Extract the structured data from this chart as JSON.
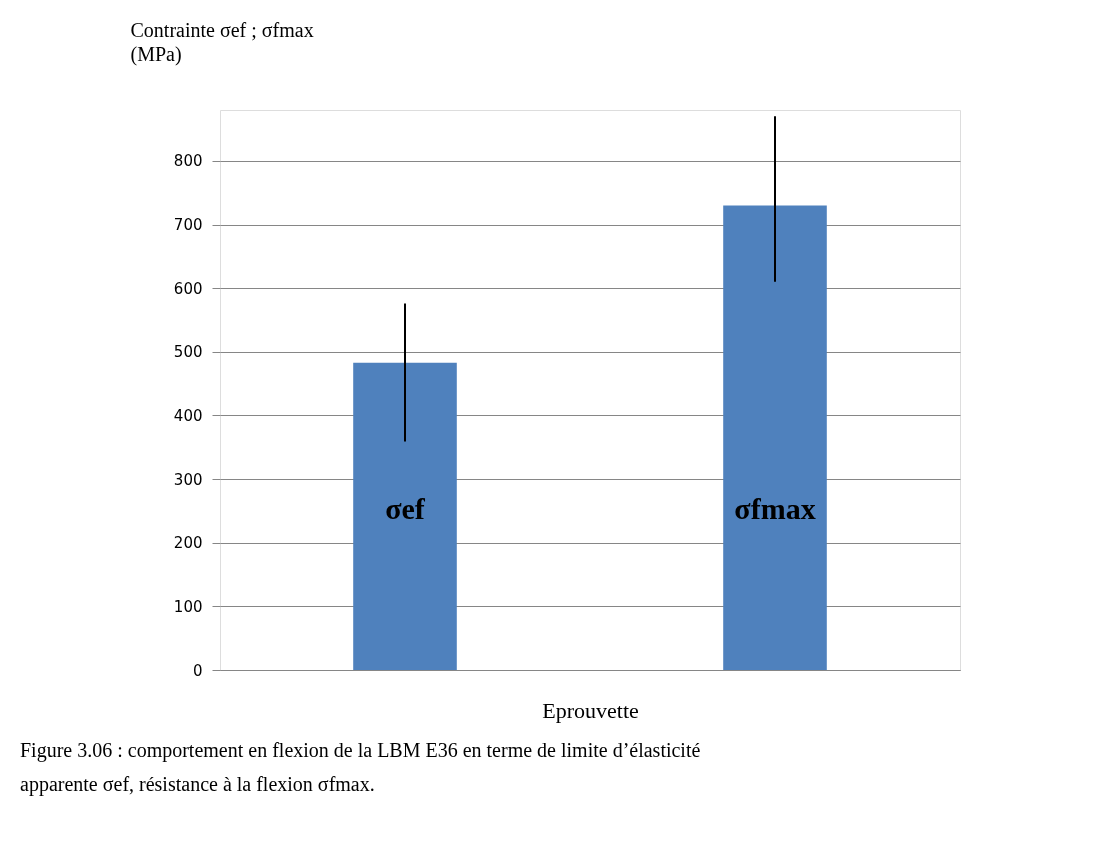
{
  "chart_data": {
    "type": "bar",
    "ylabel": "Contrainte σef ; σfmax\n(MPa)",
    "xlabel": "Eprouvette",
    "categories": [
      "σef",
      "σfmax"
    ],
    "series": [
      {
        "color": "#4f81bd",
        "values": [
          483,
          730
        ],
        "errors": [
          [
            359,
            576
          ],
          [
            610,
            870
          ]
        ]
      }
    ],
    "ylim": [
      0,
      880
    ],
    "yticks": [
      0,
      100,
      200,
      300,
      400,
      500,
      600,
      700,
      800
    ],
    "grid": "y",
    "tick_labels": "y",
    "annotations": [
      "Figure 3.06 : comportement en flexion de la LBM E36 en terme de limite d’élasticité apparente σef, résistance à la flexion σfmax."
    ]
  }
}
